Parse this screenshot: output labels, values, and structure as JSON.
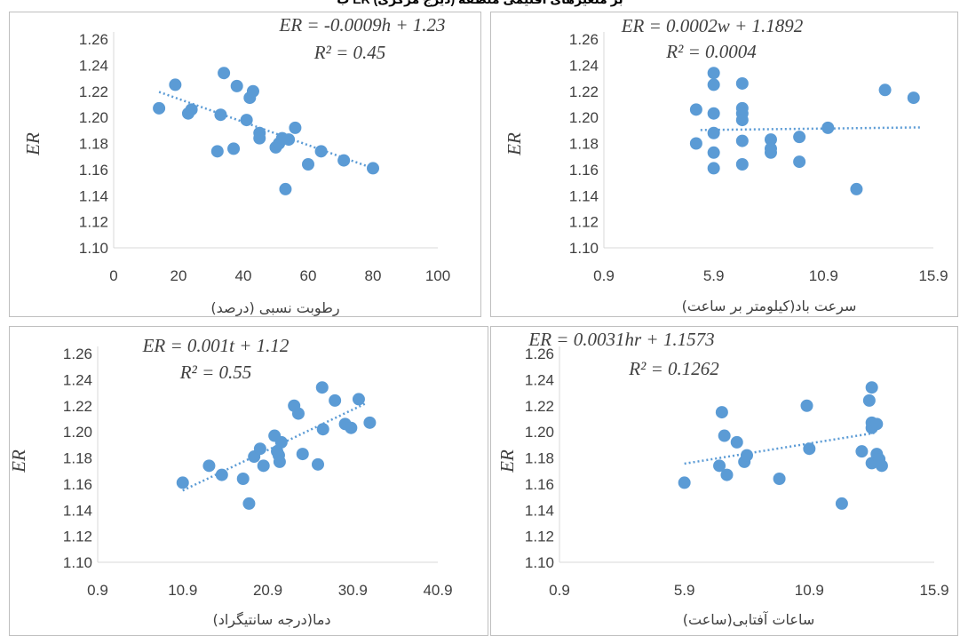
{
  "page_title": "ب ER  بر متغیرهای اقلیمی منطقه (دیزج مرکزی)",
  "colors": {
    "point": "#5B9BD5",
    "trend": "#5B9BD5",
    "axis": "#D9D9D9",
    "text": "#404040",
    "frame": "#BFBFBF"
  },
  "chart_data": [
    {
      "type": "scatter",
      "panel": "top-left",
      "xlabel": "رطوبت نسبی (درصد)",
      "ylabel": "ER",
      "equation": "ER = -0.0009h + 1.23",
      "r2": "R² = 0.45",
      "xlim": [
        0,
        100
      ],
      "ylim": [
        1.1,
        1.26
      ],
      "xticks": [
        "0",
        "20",
        "40",
        "60",
        "80",
        "100"
      ],
      "yticks": [
        "1.10",
        "1.12",
        "1.14",
        "1.16",
        "1.18",
        "1.20",
        "1.22",
        "1.24",
        "1.26"
      ],
      "trend": {
        "x": [
          14,
          80
        ],
        "y": [
          1.2195,
          1.161
        ]
      },
      "points": [
        {
          "x": 14,
          "y": 1.207
        },
        {
          "x": 19,
          "y": 1.225
        },
        {
          "x": 23,
          "y": 1.203
        },
        {
          "x": 24,
          "y": 1.206
        },
        {
          "x": 32,
          "y": 1.174
        },
        {
          "x": 33,
          "y": 1.202
        },
        {
          "x": 34,
          "y": 1.234
        },
        {
          "x": 37,
          "y": 1.176
        },
        {
          "x": 38,
          "y": 1.224
        },
        {
          "x": 41,
          "y": 1.198
        },
        {
          "x": 42,
          "y": 1.215
        },
        {
          "x": 43,
          "y": 1.22
        },
        {
          "x": 45,
          "y": 1.188
        },
        {
          "x": 45,
          "y": 1.184
        },
        {
          "x": 50,
          "y": 1.177
        },
        {
          "x": 51,
          "y": 1.18
        },
        {
          "x": 52,
          "y": 1.184
        },
        {
          "x": 53,
          "y": 1.145
        },
        {
          "x": 54,
          "y": 1.183
        },
        {
          "x": 56,
          "y": 1.192
        },
        {
          "x": 60,
          "y": 1.164
        },
        {
          "x": 64,
          "y": 1.174
        },
        {
          "x": 71,
          "y": 1.167
        },
        {
          "x": 80,
          "y": 1.161
        }
      ]
    },
    {
      "type": "scatter",
      "panel": "top-right",
      "xlabel": "سرعت باد(کیلومتر بر ساعت)",
      "ylabel": "ER",
      "equation": "ER = 0.0002w + 1.1892",
      "r2": "R² = 0.0004",
      "xlim": [
        0.9,
        15.9
      ],
      "ylim": [
        1.1,
        1.26
      ],
      "xticks": [
        "0.9",
        "5.9",
        "10.9",
        "15.9"
      ],
      "yticks": [
        "1.10",
        "1.12",
        "1.14",
        "1.16",
        "1.18",
        "1.20",
        "1.22",
        "1.24",
        "1.26"
      ],
      "trend": {
        "x": [
          5.3,
          15.3
        ],
        "y": [
          1.1903,
          1.1923
        ]
      },
      "points": [
        {
          "x": 5.1,
          "y": 1.206
        },
        {
          "x": 5.1,
          "y": 1.18
        },
        {
          "x": 5.9,
          "y": 1.234
        },
        {
          "x": 5.9,
          "y": 1.225
        },
        {
          "x": 5.9,
          "y": 1.203
        },
        {
          "x": 5.9,
          "y": 1.188
        },
        {
          "x": 5.9,
          "y": 1.173
        },
        {
          "x": 5.9,
          "y": 1.161
        },
        {
          "x": 7.2,
          "y": 1.226
        },
        {
          "x": 7.2,
          "y": 1.207
        },
        {
          "x": 7.2,
          "y": 1.203
        },
        {
          "x": 7.2,
          "y": 1.198
        },
        {
          "x": 7.2,
          "y": 1.182
        },
        {
          "x": 7.2,
          "y": 1.164
        },
        {
          "x": 8.5,
          "y": 1.183
        },
        {
          "x": 8.5,
          "y": 1.176
        },
        {
          "x": 8.5,
          "y": 1.173
        },
        {
          "x": 9.8,
          "y": 1.185
        },
        {
          "x": 9.8,
          "y": 1.166
        },
        {
          "x": 11.1,
          "y": 1.192
        },
        {
          "x": 12.4,
          "y": 1.145
        },
        {
          "x": 13.7,
          "y": 1.221
        },
        {
          "x": 15.0,
          "y": 1.215
        }
      ]
    },
    {
      "type": "scatter",
      "panel": "bottom-left",
      "xlabel": "دما(درجه سانتیگراد)",
      "ylabel": "ER",
      "equation": "ER = 0.001t + 1.12",
      "r2": "R² = 0.55",
      "xlim": [
        0.9,
        40.9
      ],
      "ylim": [
        1.1,
        1.26
      ],
      "xticks": [
        "0.9",
        "10.9",
        "20.9",
        "30.9",
        "40.9"
      ],
      "yticks": [
        "1.10",
        "1.12",
        "1.14",
        "1.16",
        "1.18",
        "1.20",
        "1.22",
        "1.24",
        "1.26"
      ],
      "trend": {
        "x": [
          10.9,
          32.5
        ],
        "y": [
          1.155,
          1.222
        ]
      },
      "points": [
        {
          "x": 10.9,
          "y": 1.161
        },
        {
          "x": 14.0,
          "y": 1.174
        },
        {
          "x": 15.5,
          "y": 1.167
        },
        {
          "x": 18.0,
          "y": 1.164
        },
        {
          "x": 18.7,
          "y": 1.145
        },
        {
          "x": 19.3,
          "y": 1.181
        },
        {
          "x": 20.0,
          "y": 1.187
        },
        {
          "x": 20.4,
          "y": 1.174
        },
        {
          "x": 21.7,
          "y": 1.197
        },
        {
          "x": 22.0,
          "y": 1.185
        },
        {
          "x": 22.2,
          "y": 1.182
        },
        {
          "x": 22.3,
          "y": 1.177
        },
        {
          "x": 22.5,
          "y": 1.192
        },
        {
          "x": 24.0,
          "y": 1.22
        },
        {
          "x": 24.5,
          "y": 1.214
        },
        {
          "x": 25.0,
          "y": 1.183
        },
        {
          "x": 26.8,
          "y": 1.175
        },
        {
          "x": 27.3,
          "y": 1.234
        },
        {
          "x": 27.4,
          "y": 1.202
        },
        {
          "x": 28.8,
          "y": 1.224
        },
        {
          "x": 30.0,
          "y": 1.206
        },
        {
          "x": 30.7,
          "y": 1.203
        },
        {
          "x": 31.6,
          "y": 1.225
        },
        {
          "x": 32.9,
          "y": 1.207
        }
      ]
    },
    {
      "type": "scatter",
      "panel": "bottom-right",
      "xlabel": "ساعات آفتابی(ساعت)",
      "ylabel": "ER",
      "equation": "ER = 0.0031hr + 1.1573",
      "r2": "R² = 0.1262",
      "xlim": [
        0.9,
        15.9
      ],
      "ylim": [
        1.1,
        1.26
      ],
      "xticks": [
        "0.9",
        "5.9",
        "10.9",
        "15.9"
      ],
      "yticks": [
        "1.10",
        "1.12",
        "1.14",
        "1.16",
        "1.18",
        "1.20",
        "1.22",
        "1.24",
        "1.26"
      ],
      "trend": {
        "x": [
          5.9,
          13.5
        ],
        "y": [
          1.1756,
          1.1991
        ]
      },
      "points": [
        {
          "x": 5.9,
          "y": 1.161
        },
        {
          "x": 7.3,
          "y": 1.174
        },
        {
          "x": 7.4,
          "y": 1.215
        },
        {
          "x": 7.5,
          "y": 1.197
        },
        {
          "x": 7.6,
          "y": 1.167
        },
        {
          "x": 8.0,
          "y": 1.192
        },
        {
          "x": 8.3,
          "y": 1.177
        },
        {
          "x": 8.4,
          "y": 1.182
        },
        {
          "x": 9.7,
          "y": 1.164
        },
        {
          "x": 10.8,
          "y": 1.22
        },
        {
          "x": 10.9,
          "y": 1.187
        },
        {
          "x": 12.2,
          "y": 1.145
        },
        {
          "x": 13.0,
          "y": 1.185
        },
        {
          "x": 13.3,
          "y": 1.224
        },
        {
          "x": 13.4,
          "y": 1.234
        },
        {
          "x": 13.4,
          "y": 1.207
        },
        {
          "x": 13.4,
          "y": 1.203
        },
        {
          "x": 13.4,
          "y": 1.176
        },
        {
          "x": 13.6,
          "y": 1.206
        },
        {
          "x": 13.6,
          "y": 1.183
        },
        {
          "x": 13.7,
          "y": 1.179
        },
        {
          "x": 13.8,
          "y": 1.174
        }
      ]
    }
  ]
}
